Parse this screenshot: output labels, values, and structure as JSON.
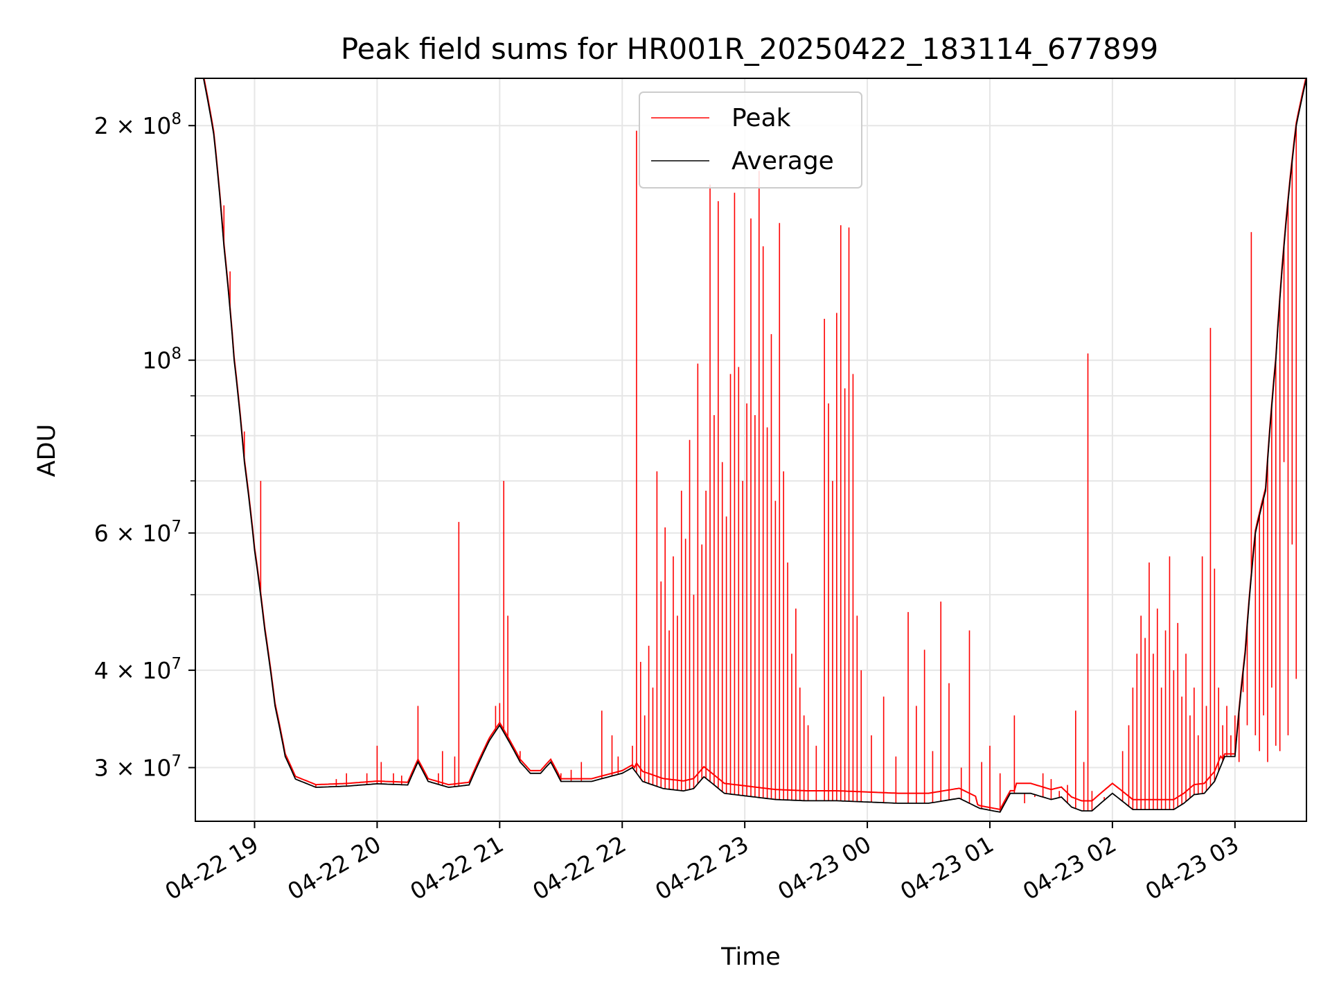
{
  "chart_data": {
    "type": "line",
    "title": "Peak field sums for HR001R_20250422_183114_677899",
    "xlabel": "Time",
    "ylabel": "ADU",
    "yscale": "log",
    "xlim": [
      "04-22 18:31",
      "04-23 03:35"
    ],
    "ylim": [
      25600000,
      230000000
    ],
    "x_ticks": [
      "04-22 19",
      "04-22 20",
      "04-22 21",
      "04-22 22",
      "04-22 23",
      "04-23 00",
      "04-23 01",
      "04-23 02",
      "04-23 03"
    ],
    "y_ticks": [
      {
        "value": 30000000,
        "mantissa": "3",
        "exp": "7"
      },
      {
        "value": 40000000,
        "mantissa": "4",
        "exp": "7"
      },
      {
        "value": 60000000,
        "mantissa": "6",
        "exp": "7"
      },
      {
        "value": 100000000,
        "mantissa": "",
        "exp": "8"
      },
      {
        "value": 200000000,
        "mantissa": "2",
        "exp": "8"
      }
    ],
    "grid": true,
    "legend_position": "upper center",
    "series": [
      {
        "name": "Average",
        "color": "#000000",
        "x": [
          "04-22 18:31",
          "04-22 18:35",
          "04-22 18:40",
          "04-22 18:45",
          "04-22 18:50",
          "04-22 18:55",
          "04-22 19:00",
          "04-22 19:05",
          "04-22 19:10",
          "04-22 19:15",
          "04-22 19:20",
          "04-22 19:30",
          "04-22 19:45",
          "04-22 20:00",
          "04-22 20:15",
          "04-22 20:20",
          "04-22 20:25",
          "04-22 20:35",
          "04-22 20:45",
          "04-22 20:50",
          "04-22 20:55",
          "04-22 21:00",
          "04-22 21:10",
          "04-22 21:15",
          "04-22 21:20",
          "04-22 21:25",
          "04-22 21:30",
          "04-22 21:45",
          "04-22 22:00",
          "04-22 22:05",
          "04-22 22:10",
          "04-22 22:20",
          "04-22 22:30",
          "04-22 22:35",
          "04-22 22:40",
          "04-22 22:50",
          "04-22 23:00",
          "04-22 23:15",
          "04-22 23:30",
          "04-22 23:45",
          "04-23 00:00",
          "04-23 00:15",
          "04-23 00:30",
          "04-23 00:45",
          "04-23 00:55",
          "04-23 01:05",
          "04-23 01:10",
          "04-23 01:20",
          "04-23 01:30",
          "04-23 01:35",
          "04-23 01:40",
          "04-23 01:45",
          "04-23 01:50",
          "04-23 02:00",
          "04-23 02:10",
          "04-23 02:20",
          "04-23 02:30",
          "04-23 02:35",
          "04-23 02:40",
          "04-23 02:45",
          "04-23 02:50",
          "04-23 02:55",
          "04-23 03:00",
          "04-23 03:05",
          "04-23 03:10",
          "04-23 03:15",
          "04-23 03:20",
          "04-23 03:25",
          "04-23 03:30",
          "04-23 03:35"
        ],
        "y": [
          230000000,
          230000000,
          195000000,
          140000000,
          100000000,
          74000000,
          57000000,
          45000000,
          36000000,
          31000000,
          29000000,
          28300000,
          28400000,
          28600000,
          28500000,
          30500000,
          28800000,
          28300000,
          28500000,
          30500000,
          32500000,
          34000000,
          30500000,
          29500000,
          29500000,
          30500000,
          28800000,
          28800000,
          29500000,
          30000000,
          28800000,
          28200000,
          28000000,
          28200000,
          29200000,
          27800000,
          27600000,
          27300000,
          27200000,
          27200000,
          27100000,
          27000000,
          27000000,
          27400000,
          26600000,
          26300000,
          27800000,
          27800000,
          27300000,
          27500000,
          26700000,
          26400000,
          26400000,
          27800000,
          26500000,
          26500000,
          26500000,
          27000000,
          27700000,
          27800000,
          28800000,
          31000000,
          31000000,
          42000000,
          60000000,
          68000000,
          100000000,
          150000000,
          200000000,
          230000000
        ]
      },
      {
        "name": "Peak",
        "color": "#ff0000",
        "spikes": [
          [
            "04-22 18:45",
            158000000
          ],
          [
            "04-22 18:48",
            130000000
          ],
          [
            "04-22 18:55",
            81000000
          ],
          [
            "04-22 19:03",
            70000000
          ],
          [
            "04-22 19:30",
            28500000
          ],
          [
            "04-22 19:40",
            29000000
          ],
          [
            "04-22 19:45",
            29500000
          ],
          [
            "04-22 19:55",
            29500000
          ],
          [
            "04-22 20:00",
            32000000
          ],
          [
            "04-22 20:02",
            30500000
          ],
          [
            "04-22 20:08",
            29500000
          ],
          [
            "04-22 20:12",
            29300000
          ],
          [
            "04-22 20:20",
            36000000
          ],
          [
            "04-22 20:30",
            29500000
          ],
          [
            "04-22 20:32",
            31500000
          ],
          [
            "04-22 20:38",
            31000000
          ],
          [
            "04-22 20:40",
            62000000
          ],
          [
            "04-22 20:58",
            36000000
          ],
          [
            "04-22 21:00",
            36300000
          ],
          [
            "04-22 21:02",
            70000000
          ],
          [
            "04-22 21:04",
            47000000
          ],
          [
            "04-22 21:10",
            31500000
          ],
          [
            "04-22 21:30",
            29500000
          ],
          [
            "04-22 21:35",
            29800000
          ],
          [
            "04-22 21:40",
            30500000
          ],
          [
            "04-22 21:50",
            35500000
          ],
          [
            "04-22 21:55",
            33000000
          ],
          [
            "04-22 21:58",
            31000000
          ],
          [
            "04-22 22:05",
            32000000
          ],
          [
            "04-22 22:07",
            197000000
          ],
          [
            "04-22 22:09",
            41000000
          ],
          [
            "04-22 22:11",
            35000000
          ],
          [
            "04-22 22:13",
            43000000
          ],
          [
            "04-22 22:15",
            38000000
          ],
          [
            "04-22 22:17",
            72000000
          ],
          [
            "04-22 22:19",
            52000000
          ],
          [
            "04-22 22:21",
            61000000
          ],
          [
            "04-22 22:23",
            45000000
          ],
          [
            "04-22 22:25",
            56000000
          ],
          [
            "04-22 22:27",
            47000000
          ],
          [
            "04-22 22:29",
            68000000
          ],
          [
            "04-22 22:31",
            59000000
          ],
          [
            "04-22 22:33",
            79000000
          ],
          [
            "04-22 22:35",
            50000000
          ],
          [
            "04-22 22:37",
            99000000
          ],
          [
            "04-22 22:39",
            58000000
          ],
          [
            "04-22 22:41",
            68000000
          ],
          [
            "04-22 22:43",
            168000000
          ],
          [
            "04-22 22:45",
            85000000
          ],
          [
            "04-22 22:47",
            160000000
          ],
          [
            "04-22 22:49",
            74000000
          ],
          [
            "04-22 22:51",
            63000000
          ],
          [
            "04-22 22:53",
            96000000
          ],
          [
            "04-22 22:55",
            164000000
          ],
          [
            "04-22 22:57",
            98000000
          ],
          [
            "04-22 22:59",
            70000000
          ],
          [
            "04-22 23:01",
            88000000
          ],
          [
            "04-22 23:03",
            152000000
          ],
          [
            "04-22 23:05",
            85000000
          ],
          [
            "04-22 23:07",
            175000000
          ],
          [
            "04-22 23:09",
            140000000
          ],
          [
            "04-22 23:11",
            82000000
          ],
          [
            "04-22 23:13",
            108000000
          ],
          [
            "04-22 23:15",
            66000000
          ],
          [
            "04-22 23:17",
            150000000
          ],
          [
            "04-22 23:19",
            72000000
          ],
          [
            "04-22 23:21",
            55000000
          ],
          [
            "04-22 23:23",
            42000000
          ],
          [
            "04-22 23:25",
            48000000
          ],
          [
            "04-22 23:27",
            38000000
          ],
          [
            "04-22 23:29",
            35000000
          ],
          [
            "04-22 23:31",
            34000000
          ],
          [
            "04-22 23:35",
            32000000
          ],
          [
            "04-22 23:39",
            113000000
          ],
          [
            "04-22 23:41",
            88000000
          ],
          [
            "04-22 23:43",
            70000000
          ],
          [
            "04-22 23:45",
            115000000
          ],
          [
            "04-22 23:47",
            149000000
          ],
          [
            "04-22 23:49",
            92000000
          ],
          [
            "04-22 23:51",
            148000000
          ],
          [
            "04-22 23:53",
            96000000
          ],
          [
            "04-22 23:55",
            47000000
          ],
          [
            "04-22 23:57",
            40000000
          ],
          [
            "04-23 00:02",
            33000000
          ],
          [
            "04-23 00:08",
            37000000
          ],
          [
            "04-23 00:14",
            31000000
          ],
          [
            "04-23 00:20",
            47500000
          ],
          [
            "04-23 00:24",
            36000000
          ],
          [
            "04-23 00:28",
            42500000
          ],
          [
            "04-23 00:32",
            31500000
          ],
          [
            "04-23 00:36",
            49000000
          ],
          [
            "04-23 00:40",
            38500000
          ],
          [
            "04-23 00:46",
            30000000
          ],
          [
            "04-23 00:50",
            45000000
          ],
          [
            "04-23 00:56",
            30500000
          ],
          [
            "04-23 01:00",
            32000000
          ],
          [
            "04-23 01:05",
            29500000
          ],
          [
            "04-23 01:12",
            35000000
          ],
          [
            "04-23 01:17",
            27000000
          ],
          [
            "04-23 01:22",
            27500000
          ],
          [
            "04-23 01:26",
            29500000
          ],
          [
            "04-23 01:30",
            29000000
          ],
          [
            "04-23 01:34",
            28000000
          ],
          [
            "04-23 01:38",
            28500000
          ],
          [
            "04-23 01:42",
            35500000
          ],
          [
            "04-23 01:46",
            30500000
          ],
          [
            "04-23 01:48",
            102000000
          ],
          [
            "04-23 01:50",
            28000000
          ],
          [
            "04-23 01:56",
            27500000
          ],
          [
            "04-23 02:05",
            31500000
          ],
          [
            "04-23 02:08",
            34000000
          ],
          [
            "04-23 02:10",
            38000000
          ],
          [
            "04-23 02:12",
            42000000
          ],
          [
            "04-23 02:14",
            47000000
          ],
          [
            "04-23 02:16",
            44000000
          ],
          [
            "04-23 02:18",
            55000000
          ],
          [
            "04-23 02:20",
            42000000
          ],
          [
            "04-23 02:22",
            48000000
          ],
          [
            "04-23 02:24",
            38000000
          ],
          [
            "04-23 02:26",
            45000000
          ],
          [
            "04-23 02:28",
            56000000
          ],
          [
            "04-23 02:30",
            40000000
          ],
          [
            "04-23 02:32",
            46000000
          ],
          [
            "04-23 02:34",
            37000000
          ],
          [
            "04-23 02:36",
            42000000
          ],
          [
            "04-23 02:38",
            35000000
          ],
          [
            "04-23 02:40",
            38000000
          ],
          [
            "04-23 02:42",
            33000000
          ],
          [
            "04-23 02:44",
            56000000
          ],
          [
            "04-23 02:46",
            36000000
          ],
          [
            "04-23 02:48",
            110000000
          ],
          [
            "04-23 02:50",
            54000000
          ],
          [
            "04-23 02:52",
            38000000
          ],
          [
            "04-23 02:54",
            34000000
          ],
          [
            "04-23 02:56",
            36000000
          ],
          [
            "04-23 02:58",
            33000000
          ],
          [
            "04-23 03:00",
            35000000
          ],
          [
            "04-23 03:02",
            30500000
          ],
          [
            "04-23 03:04",
            37500000
          ],
          [
            "04-23 03:06",
            34000000
          ],
          [
            "04-23 03:08",
            146000000
          ],
          [
            "04-23 03:10",
            33000000
          ],
          [
            "04-23 03:12",
            31500000
          ],
          [
            "04-23 03:14",
            35000000
          ],
          [
            "04-23 03:16",
            30500000
          ],
          [
            "04-23 03:18",
            38000000
          ],
          [
            "04-23 03:20",
            32000000
          ],
          [
            "04-23 03:22",
            31500000
          ],
          [
            "04-23 03:24",
            74000000
          ],
          [
            "04-23 03:26",
            33000000
          ],
          [
            "04-23 03:28",
            58000000
          ],
          [
            "04-23 03:30",
            39000000
          ]
        ]
      }
    ]
  }
}
